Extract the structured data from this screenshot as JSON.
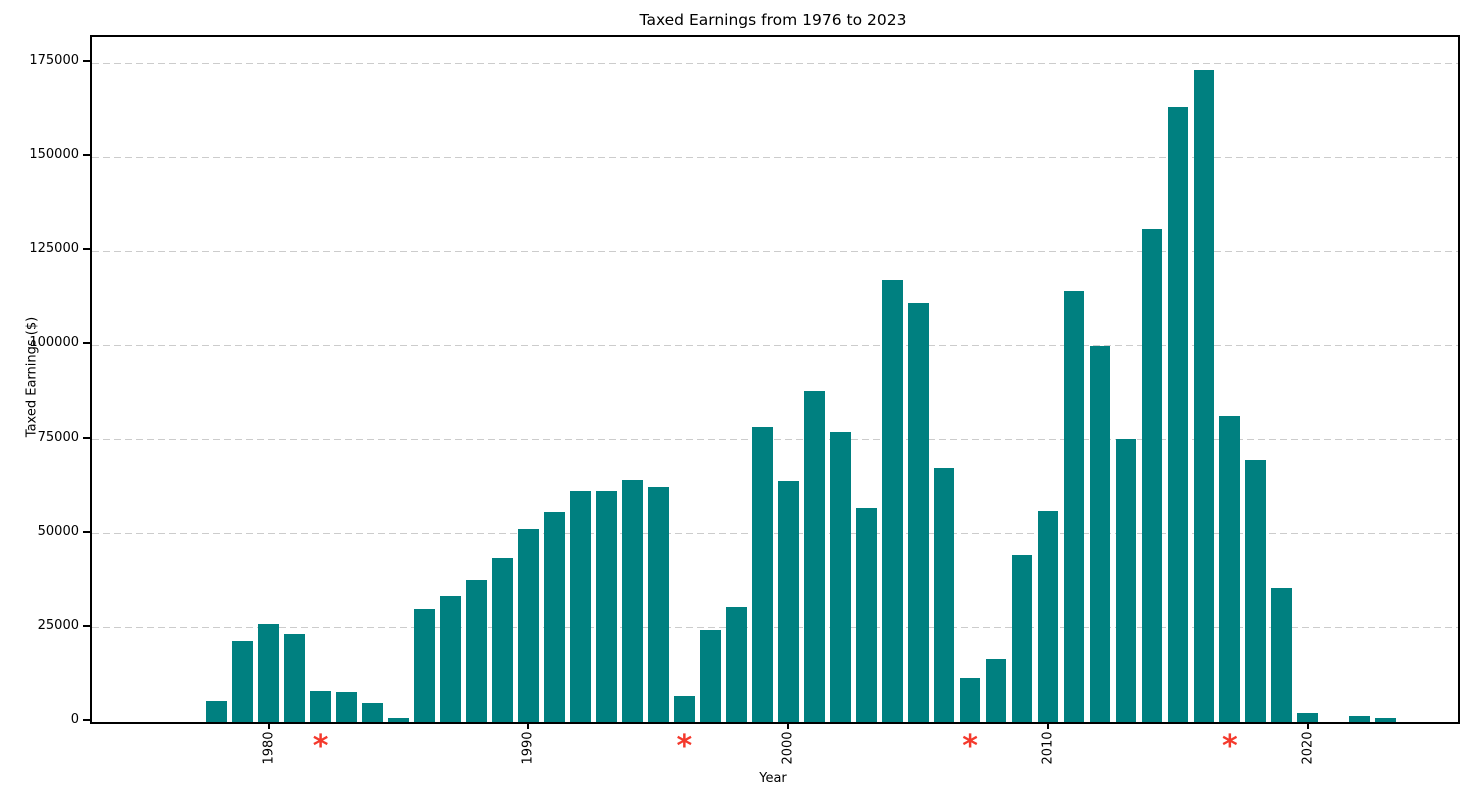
{
  "chart_data": {
    "type": "bar",
    "title": "Taxed Earnings from 1976 to 2023",
    "xlabel": "Year",
    "ylabel": "Taxed Earnings ($)",
    "bar_color": "#008080",
    "grid": {
      "axis": "y",
      "style": "dashed",
      "color": "#cccccc",
      "on": true
    },
    "ylim": [
      0,
      181900
    ],
    "y_ticks": [
      0,
      25000,
      50000,
      75000,
      100000,
      125000,
      150000,
      175000
    ],
    "y_tick_labels": [
      "0",
      "25000",
      "50000",
      "75000",
      "100000",
      "125000",
      "150000",
      "175000"
    ],
    "x_ticks": [
      1980,
      1990,
      2000,
      2010,
      2020
    ],
    "x_tick_labels": [
      "1980",
      "1990",
      "2000",
      "2010",
      "2020"
    ],
    "missing_marker": {
      "symbol": "*",
      "color": "#f4392c",
      "years": [
        1982,
        1996,
        2007,
        2017
      ]
    },
    "categories": [
      1976,
      1977,
      1978,
      1979,
      1980,
      1981,
      1982,
      1983,
      1984,
      1985,
      1986,
      1987,
      1988,
      1989,
      1990,
      1991,
      1992,
      1993,
      1994,
      1995,
      1996,
      1997,
      1998,
      1999,
      2000,
      2001,
      2002,
      2003,
      2004,
      2005,
      2006,
      2007,
      2008,
      2009,
      2010,
      2011,
      2012,
      2013,
      2014,
      2015,
      2016,
      2017,
      2018,
      2019,
      2020,
      2021,
      2022,
      2023
    ],
    "values": [
      null,
      null,
      5600,
      21500,
      25900,
      23500,
      8200,
      8000,
      5100,
      1100,
      30000,
      33400,
      37600,
      43600,
      51300,
      55700,
      61300,
      61300,
      64300,
      62400,
      7000,
      24400,
      30600,
      78400,
      64000,
      87800,
      76900,
      56900,
      117500,
      111300,
      67400,
      11700,
      16800,
      44300,
      56100,
      114400,
      99900,
      75200,
      131000,
      163300,
      173100,
      81300,
      69600,
      35500,
      2500,
      null,
      1500,
      1000
    ]
  }
}
